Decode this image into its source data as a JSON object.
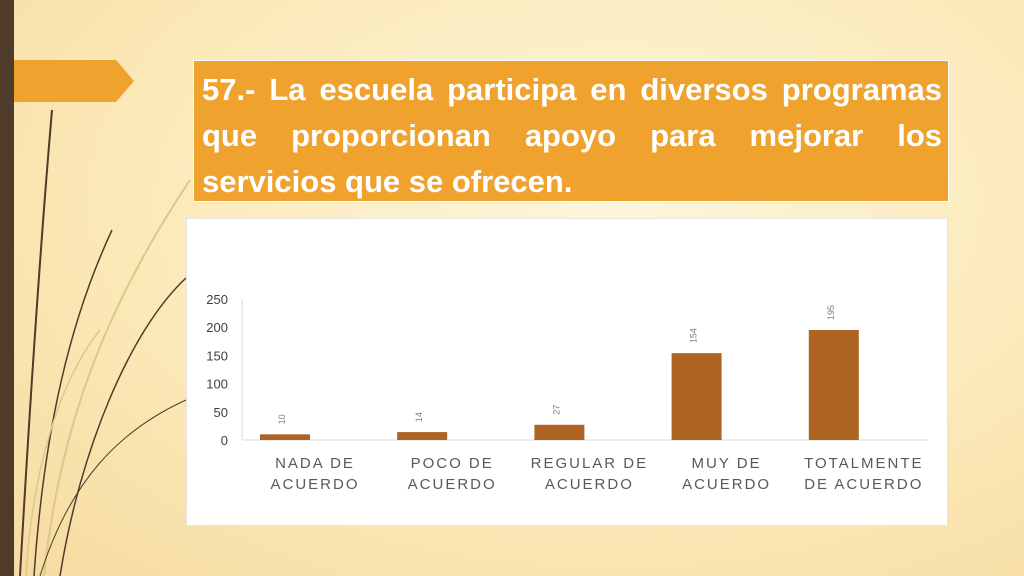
{
  "slide": {
    "title": "57.- La escuela participa en diversos programas que proporcionan apoyo para mejorar los servicios que se ofrecen.",
    "colors": {
      "title_bg": "#f0a22e",
      "bar": "#ad6322",
      "left_bar": "#4e3b2a"
    }
  },
  "chart_data": {
    "type": "bar",
    "title": "",
    "xlabel": "",
    "ylabel": "",
    "categories": [
      "NADA DE ACUERDO",
      "POCO DE ACUERDO",
      "REGULAR DE ACUERDO",
      "MUY DE ACUERDO",
      "TOTALMENTE DE ACUERDO"
    ],
    "values": [
      10,
      14,
      27,
      154,
      195
    ],
    "data_labels": [
      "10",
      "14",
      "27",
      "154",
      "195"
    ],
    "ylim": [
      0,
      250
    ],
    "yticks": [
      0,
      50,
      100,
      150,
      200,
      250
    ],
    "ytick_labels": [
      "0",
      "50",
      "100",
      "150",
      "200",
      "250"
    ],
    "grid": false,
    "legend": "none"
  }
}
